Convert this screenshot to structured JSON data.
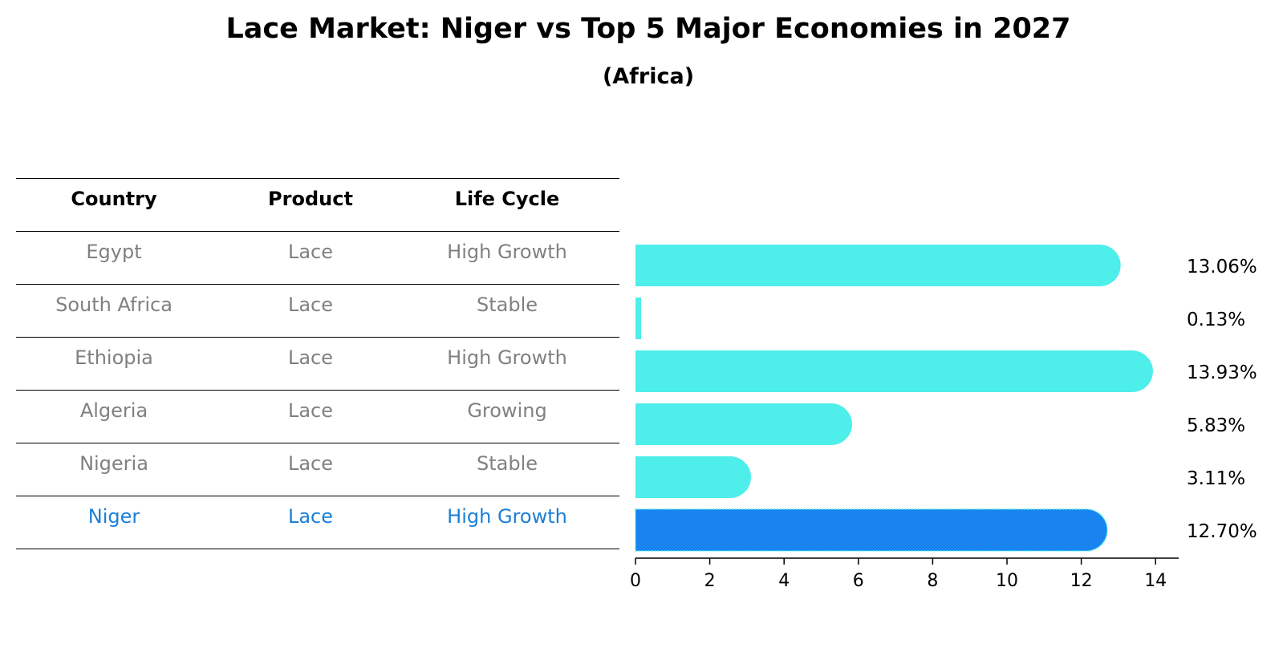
{
  "chart_data": {
    "type": "bar",
    "orientation": "horizontal",
    "title": "Lace Market: Niger vs Top 5 Major Economies in 2027",
    "subtitle": "(Africa)",
    "categories": [
      "Egypt",
      "South Africa",
      "Ethiopia",
      "Algeria",
      "Nigeria",
      "Niger"
    ],
    "values": [
      13.06,
      0.13,
      13.93,
      5.83,
      3.11,
      12.7
    ],
    "value_labels": [
      "13.06%",
      "0.13%",
      "13.93%",
      "5.83%",
      "3.11%",
      "12.70%"
    ],
    "highlight": "Niger",
    "bar_color": "#4eeeea",
    "highlight_color": "#1984f0",
    "xlim": [
      0,
      14.6
    ],
    "xticks": [
      "0",
      "2",
      "4",
      "6",
      "8",
      "10",
      "12",
      "14"
    ],
    "xlabel": "",
    "ylabel": ""
  },
  "table": {
    "headers": [
      "Country",
      "Product",
      "Life Cycle"
    ],
    "rows": [
      [
        "Egypt",
        "Lace",
        "High Growth"
      ],
      [
        "South Africa",
        "Lace",
        "Stable"
      ],
      [
        "Ethiopia",
        "Lace",
        "High Growth"
      ],
      [
        "Algeria",
        "Lace",
        "Growing"
      ],
      [
        "Nigeria",
        "Lace",
        "Stable"
      ],
      [
        "Niger",
        "Lace",
        "High Growth"
      ]
    ]
  }
}
